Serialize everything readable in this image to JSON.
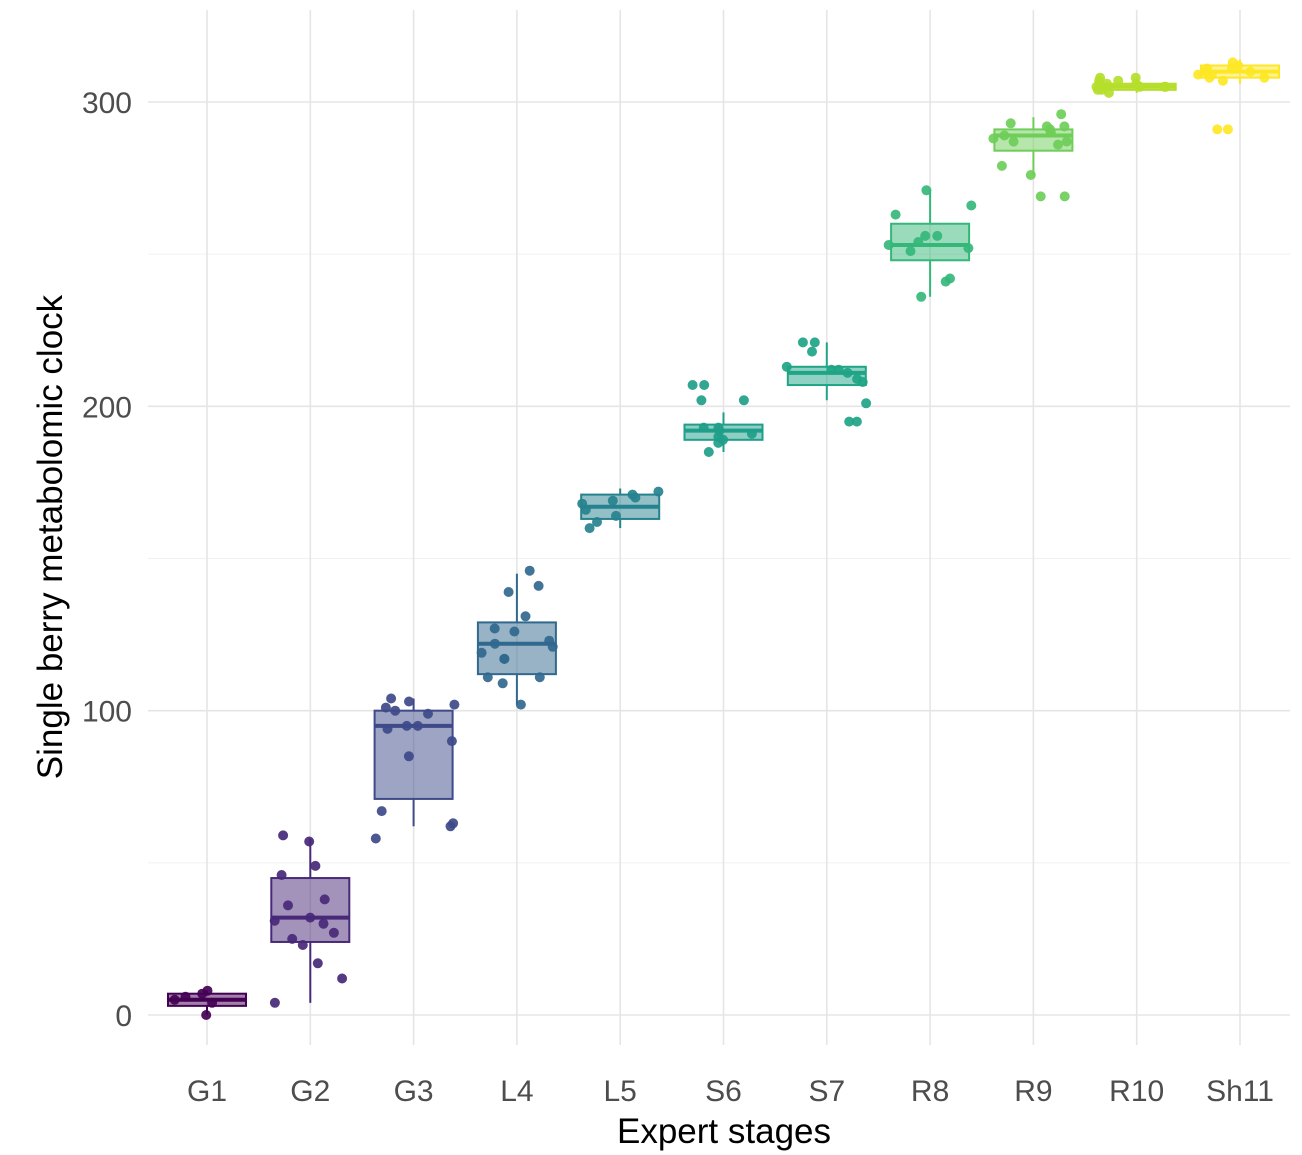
{
  "chart_data": {
    "type": "box",
    "title": "",
    "xlabel": "Expert stages",
    "ylabel": "Single berry metabolomic clock",
    "ylim": [
      -9,
      320
    ],
    "y_ticks": [
      0,
      100,
      200,
      300
    ],
    "y_tick_labels": [
      "0",
      "100",
      "200",
      "300"
    ],
    "y_minor_ticks": [
      50,
      150,
      250
    ],
    "grid": true,
    "legend": "none",
    "categories": [
      "G1",
      "G2",
      "G3",
      "L4",
      "L5",
      "S6",
      "S7",
      "R8",
      "R9",
      "R10",
      "Sh11"
    ],
    "colors": [
      "#440154",
      "#482878",
      "#3e4a89",
      "#31688e",
      "#26828e",
      "#1f9e89",
      "#20a486",
      "#35b779",
      "#6ece58",
      "#b5de2b",
      "#fde725"
    ],
    "boxes": [
      {
        "category": "G1",
        "lower_whisker": 0,
        "q1": 3,
        "median": 5,
        "q3": 7,
        "upper_whisker": 8
      },
      {
        "category": "G2",
        "lower_whisker": 4,
        "q1": 24,
        "median": 32,
        "q3": 45,
        "upper_whisker": 58
      },
      {
        "category": "G3",
        "lower_whisker": 62,
        "q1": 71,
        "median": 95,
        "q3": 100,
        "upper_whisker": 104
      },
      {
        "category": "L4",
        "lower_whisker": 102,
        "q1": 112,
        "median": 122,
        "q3": 129,
        "upper_whisker": 145
      },
      {
        "category": "L5",
        "lower_whisker": 160,
        "q1": 163,
        "median": 167,
        "q3": 171,
        "upper_whisker": 173
      },
      {
        "category": "S6",
        "lower_whisker": 185,
        "q1": 189,
        "median": 192,
        "q3": 194,
        "upper_whisker": 198
      },
      {
        "category": "S7",
        "lower_whisker": 202,
        "q1": 207,
        "median": 211,
        "q3": 213,
        "upper_whisker": 221
      },
      {
        "category": "R8",
        "lower_whisker": 236,
        "q1": 248,
        "median": 253,
        "q3": 260,
        "upper_whisker": 271
      },
      {
        "category": "R9",
        "lower_whisker": 276,
        "q1": 284,
        "median": 289,
        "q3": 291,
        "upper_whisker": 295
      },
      {
        "category": "R10",
        "lower_whisker": 303,
        "q1": 304,
        "median": 305,
        "q3": 306,
        "upper_whisker": 308
      },
      {
        "category": "Sh11",
        "lower_whisker": 306,
        "q1": 308,
        "median": 310,
        "q3": 312,
        "upper_whisker": 314
      }
    ],
    "points": [
      {
        "category": "G1",
        "values": [
          0,
          4,
          5,
          6,
          7,
          8
        ]
      },
      {
        "category": "G2",
        "values": [
          4,
          12,
          17,
          23,
          25,
          27,
          30,
          31,
          32,
          36,
          38,
          46,
          49,
          57,
          59
        ]
      },
      {
        "category": "G3",
        "values": [
          58,
          62,
          63,
          67,
          85,
          90,
          94,
          95,
          95,
          99,
          100,
          101,
          102,
          103,
          104
        ]
      },
      {
        "category": "L4",
        "values": [
          102,
          109,
          111,
          111,
          117,
          117,
          119,
          121,
          122,
          123,
          126,
          127,
          131,
          139,
          141,
          146
        ]
      },
      {
        "category": "L5",
        "values": [
          160,
          162,
          164,
          166,
          168,
          169,
          170,
          171,
          172
        ]
      },
      {
        "category": "S6",
        "values": [
          185,
          188,
          189,
          190,
          191,
          192,
          193,
          193,
          202,
          202,
          207,
          207
        ]
      },
      {
        "category": "S7",
        "values": [
          195,
          195,
          201,
          208,
          209,
          211,
          212,
          212,
          213,
          218,
          221,
          221
        ]
      },
      {
        "category": "R8",
        "values": [
          236,
          241,
          242,
          251,
          252,
          253,
          254,
          256,
          256,
          263,
          266,
          271
        ]
      },
      {
        "category": "R9",
        "values": [
          269,
          269,
          276,
          279,
          286,
          287,
          287,
          288,
          289,
          290,
          291,
          292,
          292,
          293,
          296
        ]
      },
      {
        "category": "R10",
        "values": [
          303,
          304,
          304,
          305,
          305,
          305,
          305,
          306,
          306,
          307,
          307,
          308,
          308
        ]
      },
      {
        "category": "Sh11",
        "values": [
          291,
          291,
          307,
          308,
          308,
          309,
          309,
          310,
          310,
          311,
          311,
          312,
          313
        ]
      }
    ]
  }
}
